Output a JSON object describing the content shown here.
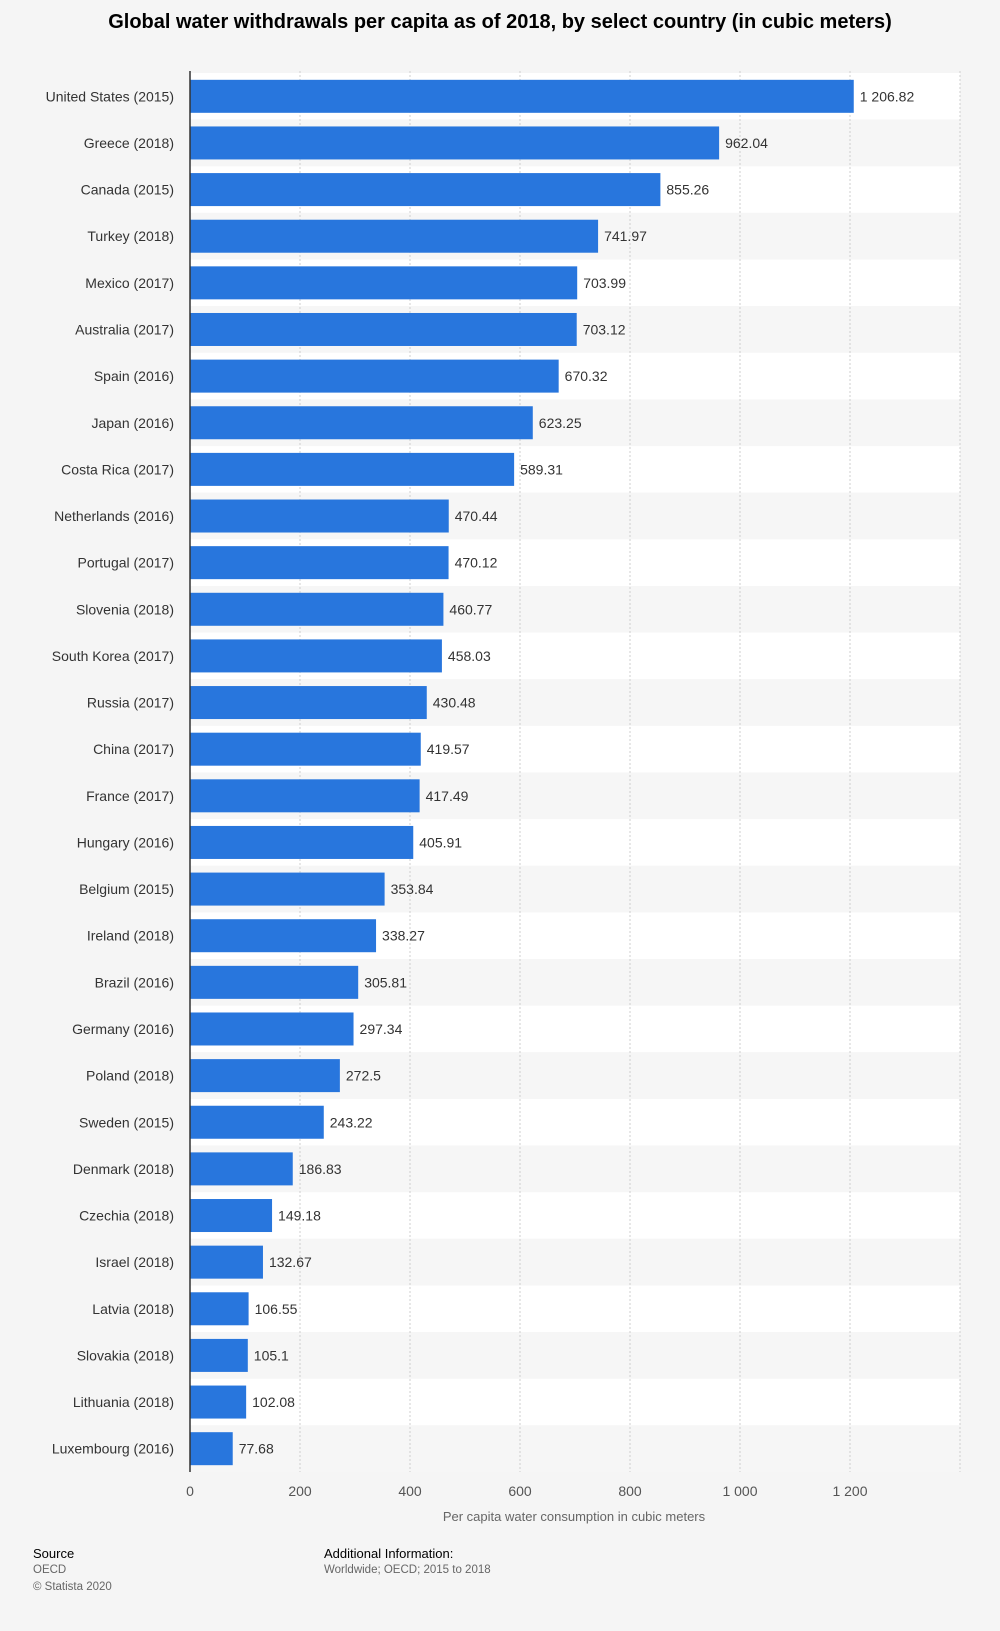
{
  "chart_data": {
    "type": "bar",
    "orientation": "horizontal",
    "title": "Global water withdrawals per capita as of 2018, by select country (in cubic meters)",
    "xlabel": "Per capita water consumption in cubic meters",
    "ylabel": "",
    "xlim": [
      0,
      1400
    ],
    "ticks": [
      0,
      200,
      400,
      600,
      800,
      1000,
      1200
    ],
    "tick_labels": [
      "0",
      "200",
      "400",
      "600",
      "800",
      "1 000",
      "1 200"
    ],
    "grid": true,
    "bar_color": "#2876dd",
    "categories": [
      "United States (2015)",
      "Greece (2018)",
      "Canada (2015)",
      "Turkey (2018)",
      "Mexico (2017)",
      "Australia (2017)",
      "Spain (2016)",
      "Japan (2016)",
      "Costa Rica (2017)",
      "Netherlands (2016)",
      "Portugal (2017)",
      "Slovenia (2018)",
      "South Korea (2017)",
      "Russia (2017)",
      "China (2017)",
      "France (2017)",
      "Hungary (2016)",
      "Belgium (2015)",
      "Ireland (2018)",
      "Brazil (2016)",
      "Germany (2016)",
      "Poland (2018)",
      "Sweden (2015)",
      "Denmark (2018)",
      "Czechia (2018)",
      "Israel (2018)",
      "Latvia (2018)",
      "Slovakia (2018)",
      "Lithuania (2018)",
      "Luxembourg (2016)"
    ],
    "values": [
      1206.82,
      962.04,
      855.26,
      741.97,
      703.99,
      703.12,
      670.32,
      623.25,
      589.31,
      470.44,
      470.12,
      460.77,
      458.03,
      430.48,
      419.57,
      417.49,
      405.91,
      353.84,
      338.27,
      305.81,
      297.34,
      272.5,
      243.22,
      186.83,
      149.18,
      132.67,
      106.55,
      105.1,
      102.08,
      77.68
    ],
    "value_labels": [
      "1 206.82",
      "962.04",
      "855.26",
      "741.97",
      "703.99",
      "703.12",
      "670.32",
      "623.25",
      "589.31",
      "470.44",
      "470.12",
      "460.77",
      "458.03",
      "430.48",
      "419.57",
      "417.49",
      "405.91",
      "353.84",
      "338.27",
      "305.81",
      "297.34",
      "272.5",
      "243.22",
      "186.83",
      "149.18",
      "132.67",
      "106.55",
      "105.1",
      "102.08",
      "77.68"
    ]
  },
  "footer": {
    "source_heading": "Source",
    "source_name": "OECD",
    "copyright": "© Statista 2020",
    "additional_heading": "Additional Information:",
    "additional_text": "Worldwide; OECD; 2015 to 2018"
  }
}
